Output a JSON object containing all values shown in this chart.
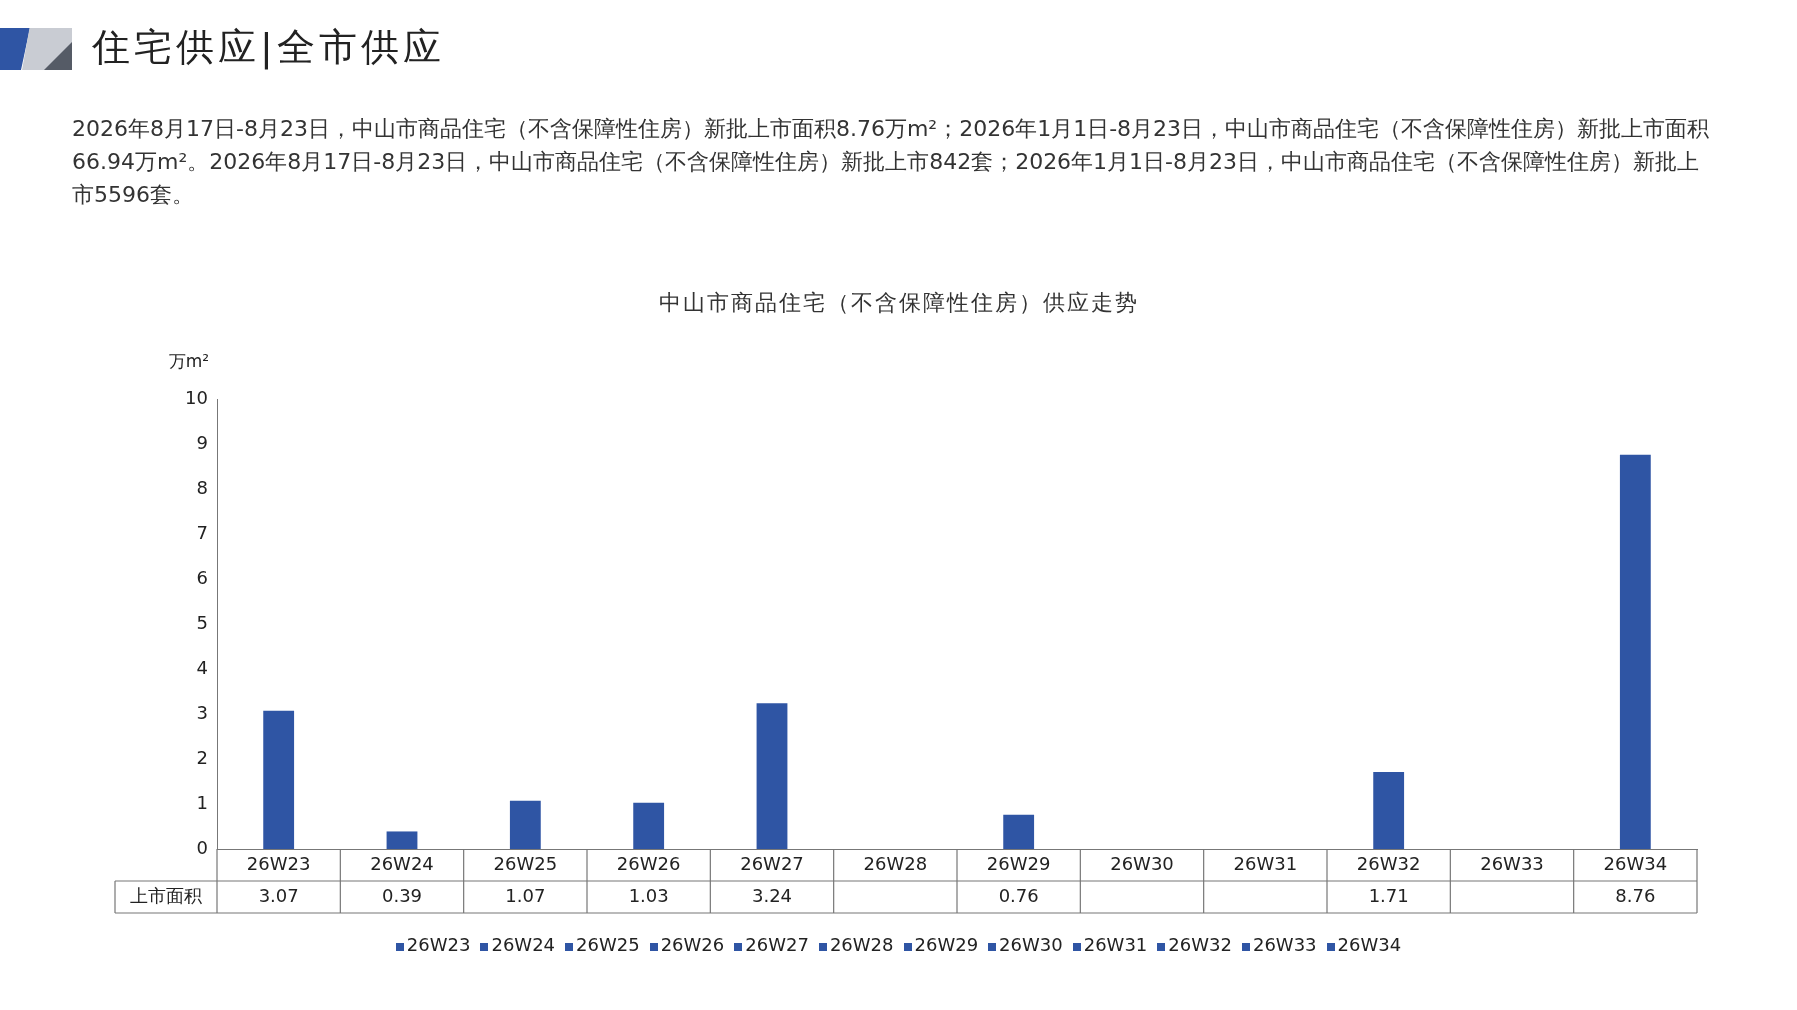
{
  "chart_data": {
    "type": "bar",
    "title": "中山市商品住宅（不含保障性住房）供应走势",
    "annotations": [
      "住宅供应|全市供应",
      "2026年8月17日-8月23日，中山市商品住宅（不含保障性住房）新批上市面积8.76万m²；2026年1月1日-8月23日，中山市商品住宅（不含保障性住房）新批上市面积66.94万m²。2026年8月17日-8月23日，中山市商品住宅（不含保障性住房）新批上市842套；2026年1月1日-8月23日，中山市商品住宅（不含保障性住房）新批上市5596套。"
    ],
    "ylabel": "万m²",
    "categories": [
      "26W23",
      "26W24",
      "26W25",
      "26W26",
      "26W27",
      "26W28",
      "26W29",
      "26W30",
      "26W31",
      "26W32",
      "26W33",
      "26W34"
    ],
    "series": [
      {
        "name": "上市面积",
        "color": "#2f55a4",
        "values": [
          3.07,
          0.39,
          1.07,
          1.03,
          3.24,
          null,
          0.76,
          null,
          null,
          1.71,
          null,
          8.76
        ]
      }
    ],
    "ylim": [
      0,
      10
    ],
    "yticks": [
      0,
      1,
      2,
      3,
      4,
      5,
      6,
      7,
      8,
      9,
      10
    ],
    "grid": false,
    "legend": "bottom",
    "data_labels": true
  }
}
